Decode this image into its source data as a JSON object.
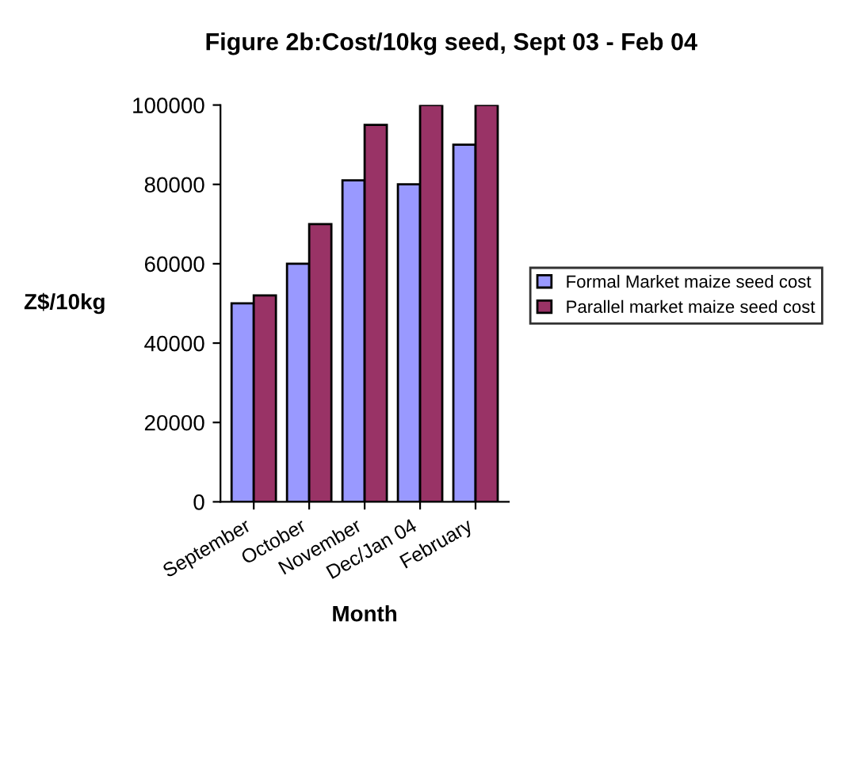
{
  "chart_data": {
    "type": "bar",
    "title": "Figure 2b:Cost/10kg seed, Sept 03 - Feb 04",
    "xlabel": "Month",
    "ylabel": "Z$/10kg",
    "categories": [
      "September",
      "October",
      "November",
      "Dec/Jan 04",
      "February"
    ],
    "series": [
      {
        "name": "Formal Market maize seed cost",
        "color": "#9999ff",
        "values": [
          50000,
          60000,
          81000,
          80000,
          90000
        ]
      },
      {
        "name": "Parallel market maize seed cost",
        "color": "#993366",
        "values": [
          52000,
          70000,
          95000,
          100000,
          100000
        ]
      }
    ],
    "ylim": [
      0,
      100000
    ],
    "yticks": [
      0,
      20000,
      40000,
      60000,
      80000,
      100000
    ],
    "grid": false,
    "legend": "right"
  }
}
